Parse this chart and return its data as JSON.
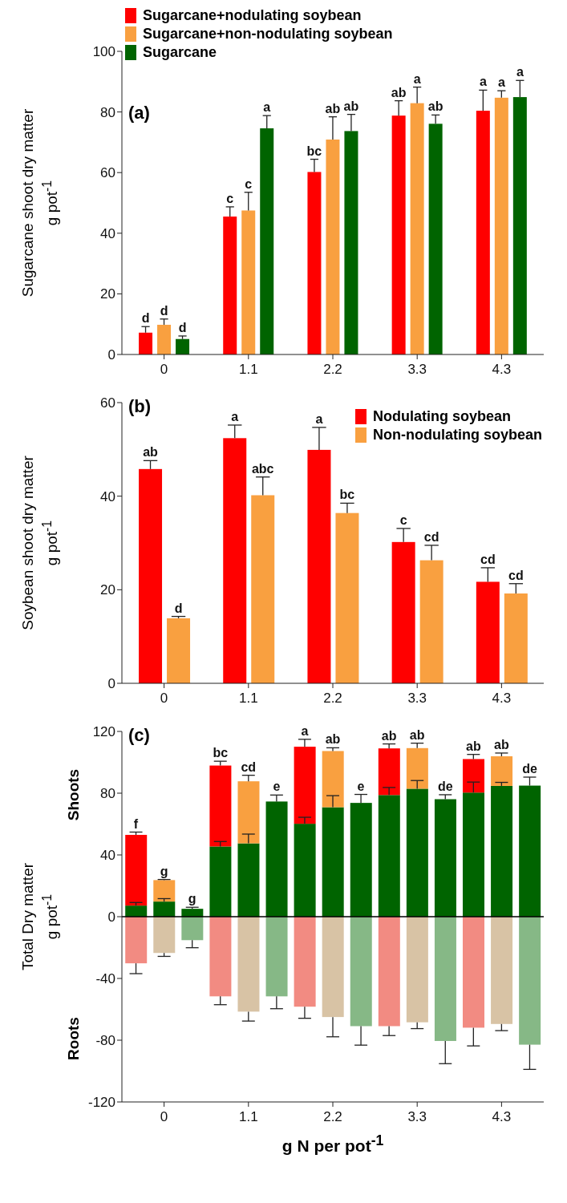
{
  "chart_data": [
    {
      "type": "bar",
      "title": "(a)",
      "ylabel": "Sugarcane shoot dry matter\ng pot$^{-1}$",
      "categories": [
        "0",
        "1.1",
        "2.2",
        "3.3",
        "4.3"
      ],
      "ylim": [
        0,
        100
      ],
      "yticks": [
        0,
        20,
        40,
        60,
        80,
        100
      ],
      "legend": "top left",
      "series": [
        {
          "name": "Sugarcane+nodulating soybean",
          "color": "#ff0000",
          "values": [
            7.2,
            45.5,
            60.2,
            78.8,
            80.4
          ],
          "errors": [
            [
              7.2,
              9.2
            ],
            [
              45.5,
              48.7
            ],
            [
              60.2,
              64.4
            ],
            [
              78.8,
              83.7
            ],
            [
              80.4,
              87.2
            ]
          ],
          "value_labels": [
            "d",
            "c",
            "bc",
            "ab",
            "a"
          ]
        },
        {
          "name": "Sugarcane+non-nodulating soybean",
          "color": "#f9a040",
          "values": [
            9.8,
            47.5,
            70.9,
            82.9,
            84.7
          ],
          "errors": [
            [
              9.8,
              11.7
            ],
            [
              47.5,
              53.5
            ],
            [
              70.9,
              78.4
            ],
            [
              82.9,
              88.2
            ],
            [
              84.7,
              87.0
            ]
          ],
          "value_labels": [
            "d",
            "c",
            "ab",
            "a",
            "a"
          ]
        },
        {
          "name": "Sugarcane",
          "color": "#006400",
          "values": [
            5.1,
            74.6,
            73.7,
            76.1,
            84.9
          ],
          "errors": [
            [
              5.1,
              6.1
            ],
            [
              74.6,
              78.8
            ],
            [
              73.7,
              79.2
            ],
            [
              76.1,
              79.0
            ],
            [
              84.9,
              90.4
            ]
          ],
          "value_labels": [
            "d",
            "a",
            "ab",
            "ab",
            "a"
          ]
        }
      ]
    },
    {
      "type": "bar",
      "title": "(b)",
      "ylabel": "Soybean shoot dry matter\ng pot$^{-1}$",
      "categories": [
        "0",
        "1.1",
        "2.2",
        "3.3",
        "4.3"
      ],
      "ylim": [
        0,
        60
      ],
      "yticks": [
        0,
        20,
        40,
        60
      ],
      "legend": "top right",
      "series": [
        {
          "name": "Nodulating soybean",
          "color": "#ff0000",
          "values": [
            45.8,
            52.4,
            49.9,
            30.2,
            21.7
          ],
          "errors": [
            [
              45.8,
              47.6
            ],
            [
              52.4,
              55.2
            ],
            [
              49.9,
              54.7
            ],
            [
              30.2,
              33.1
            ],
            [
              21.7,
              24.7
            ]
          ],
          "value_labels": [
            "ab",
            "a",
            "a",
            "c",
            "cd"
          ]
        },
        {
          "name": "Non-nodulating soybean",
          "color": "#f9a040",
          "values": [
            13.9,
            40.2,
            36.4,
            26.3,
            19.2
          ],
          "errors": [
            [
              13.9,
              14.3
            ],
            [
              40.2,
              44.1
            ],
            [
              36.4,
              38.5
            ],
            [
              26.3,
              29.5
            ],
            [
              19.2,
              21.3
            ]
          ],
          "value_labels": [
            "d",
            "abc",
            "bc",
            "cd",
            "cd"
          ]
        }
      ]
    },
    {
      "type": "bar",
      "stacked": true,
      "title": "(c)",
      "ylabel": "Total Dry matter\ng pot$^{-1}$",
      "xlabel": "g N per pot$^{-1}$",
      "annotations": [
        "Shoots",
        "Roots"
      ],
      "categories": [
        null,
        "0",
        null,
        null,
        "1.1",
        null,
        null,
        "2.2",
        null,
        null,
        "3.3",
        null,
        null,
        "4.3",
        null
      ],
      "ylim": [
        -120,
        120
      ],
      "yticks": [
        -120,
        -80,
        -40,
        0,
        40,
        80,
        120
      ],
      "ref_lines": [
        {
          "axis": "y",
          "value": 0,
          "color": "#000000"
        }
      ],
      "series": [
        {
          "color": "#006400",
          "values": [
            7.2,
            9.8,
            5.1,
            45.5,
            47.5,
            74.6,
            60.2,
            70.9,
            73.7,
            78.8,
            82.9,
            76.1,
            80.4,
            84.7,
            84.9
          ],
          "errors": [
            [
              7.2,
              9.2
            ],
            [
              9.8,
              11.7
            ],
            [
              5.1,
              6.1
            ],
            [
              45.5,
              48.7
            ],
            [
              47.5,
              53.5
            ],
            [
              74.6,
              78.8
            ],
            [
              60.2,
              64.4
            ],
            [
              70.9,
              78.4
            ],
            [
              73.7,
              79.2
            ],
            [
              78.8,
              83.7
            ],
            [
              82.9,
              88.2
            ],
            [
              76.1,
              79.0
            ],
            [
              80.4,
              87.2
            ],
            [
              84.7,
              87.0
            ],
            [
              84.9,
              90.4
            ]
          ],
          "value_labels": [
            null,
            null,
            "g",
            null,
            null,
            "e",
            null,
            null,
            "e",
            null,
            null,
            "de",
            null,
            null,
            "de"
          ]
        },
        {
          "color": "#ff0000",
          "values": [
            45.8,
            null,
            null,
            52.4,
            null,
            null,
            49.9,
            null,
            null,
            30.2,
            null,
            null,
            21.7,
            null,
            null
          ],
          "errors": [
            [
              53.0,
              54.8
            ],
            null,
            null,
            [
              97.9,
              100.7
            ],
            null,
            null,
            [
              110.1,
              114.9
            ],
            null,
            null,
            [
              109.0,
              111.9
            ],
            null,
            null,
            [
              102.1,
              105.1
            ],
            null,
            null
          ],
          "value_labels": [
            "f",
            null,
            null,
            "bc",
            null,
            null,
            "a",
            null,
            null,
            "ab",
            null,
            null,
            "ab",
            null,
            null
          ]
        },
        {
          "color": "#f9a040",
          "values": [
            null,
            13.9,
            null,
            null,
            40.2,
            null,
            null,
            36.4,
            null,
            null,
            26.3,
            null,
            null,
            19.2,
            null
          ],
          "errors": [
            null,
            [
              23.7,
              24.1
            ],
            null,
            null,
            [
              87.7,
              91.6
            ],
            null,
            null,
            [
              107.3,
              109.4
            ],
            null,
            null,
            [
              109.2,
              112.4
            ],
            null,
            null,
            [
              103.9,
              106.0
            ],
            null
          ],
          "value_labels": [
            null,
            "g",
            null,
            null,
            "cd",
            null,
            null,
            "ab",
            null,
            null,
            "ab",
            null,
            null,
            "ab",
            null
          ]
        },
        {
          "color": "#f28b82",
          "values": [
            -30.2,
            null,
            null,
            -51.6,
            null,
            null,
            -58.3,
            null,
            null,
            -70.9,
            null,
            null,
            -71.9,
            null,
            null
          ],
          "errors": [
            [
              -36.9,
              -30.2
            ],
            null,
            null,
            [
              -57.0,
              -51.6
            ],
            null,
            null,
            [
              -65.8,
              -58.3
            ],
            null,
            null,
            [
              -77.0,
              -70.9
            ],
            null,
            null,
            [
              -83.7,
              -71.9
            ],
            null,
            null
          ]
        },
        {
          "color": "#d8c3a5",
          "values": [
            null,
            -23.5,
            null,
            null,
            -61.5,
            null,
            null,
            -65.0,
            null,
            null,
            -68.4,
            null,
            null,
            -69.5,
            null
          ],
          "errors": [
            null,
            [
              -25.7,
              -23.5
            ],
            null,
            null,
            [
              -67.6,
              -61.5
            ],
            null,
            null,
            [
              -77.8,
              -65.0
            ],
            null,
            null,
            [
              -72.5,
              -68.4
            ],
            null,
            null,
            [
              -73.8,
              -69.5
            ],
            null
          ]
        },
        {
          "color": "#86b886",
          "values": [
            null,
            null,
            -15.2,
            null,
            null,
            -51.6,
            null,
            null,
            -70.9,
            null,
            null,
            -80.5,
            null,
            null,
            -82.9
          ],
          "errors": [
            null,
            null,
            [
              -20.1,
              -15.2
            ],
            null,
            null,
            [
              -59.6,
              -51.6
            ],
            null,
            null,
            [
              -83.2,
              -70.9
            ],
            null,
            null,
            [
              -95.2,
              -80.5
            ],
            null,
            null,
            [
              -98.9,
              -82.9
            ]
          ]
        }
      ]
    }
  ]
}
